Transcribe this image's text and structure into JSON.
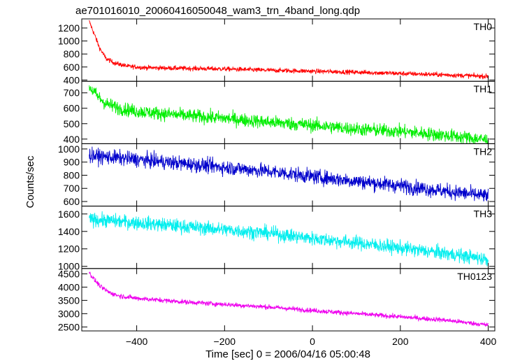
{
  "chart_data": {
    "type": "line",
    "title": "ae701016010_20060416050048_wam3_trn_4band_long.qdp",
    "xlabel": "Time [sec] 0 = 2006/04/16 05:00:48",
    "ylabel": "Counts/sec",
    "xlim": [
      -525,
      415
    ],
    "xticks": [
      -400,
      -200,
      0,
      200,
      400
    ],
    "grid": false,
    "panels": [
      {
        "name": "TH0",
        "color": "#ff0000",
        "ylim": [
          380,
          1340
        ],
        "yticks": [
          400,
          600,
          800,
          1000,
          1200
        ],
        "trend": [
          [
            -508,
            1300
          ],
          [
            -495,
            1080
          ],
          [
            -485,
            900
          ],
          [
            -470,
            730
          ],
          [
            -450,
            660
          ],
          [
            -420,
            610
          ],
          [
            -380,
            590
          ],
          [
            -300,
            580
          ],
          [
            -200,
            570
          ],
          [
            -100,
            550
          ],
          [
            0,
            535
          ],
          [
            100,
            520
          ],
          [
            200,
            500
          ],
          [
            300,
            480
          ],
          [
            400,
            455
          ]
        ],
        "noise": 18
      },
      {
        "name": "TH1",
        "color": "#00ee00",
        "ylim": [
          370,
          775
        ],
        "yticks": [
          400,
          500,
          600,
          700
        ],
        "trend": [
          [
            -508,
            740
          ],
          [
            -490,
            680
          ],
          [
            -470,
            630
          ],
          [
            -440,
            600
          ],
          [
            -400,
            580
          ],
          [
            -300,
            555
          ],
          [
            -200,
            535
          ],
          [
            -100,
            510
          ],
          [
            0,
            490
          ],
          [
            100,
            465
          ],
          [
            200,
            450
          ],
          [
            300,
            425
          ],
          [
            400,
            395
          ]
        ],
        "noise": 22
      },
      {
        "name": "TH2",
        "color": "#0000cc",
        "ylim": [
          565,
          1040
        ],
        "yticks": [
          600,
          700,
          800,
          900,
          1000
        ],
        "trend": [
          [
            -508,
            950
          ],
          [
            -400,
            920
          ],
          [
            -300,
            890
          ],
          [
            -200,
            860
          ],
          [
            -100,
            830
          ],
          [
            0,
            790
          ],
          [
            100,
            755
          ],
          [
            200,
            720
          ],
          [
            300,
            680
          ],
          [
            400,
            640
          ]
        ],
        "noise": 28
      },
      {
        "name": "TH3",
        "color": "#00eeee",
        "ylim": [
          975,
          1690
        ],
        "yticks": [
          1000,
          1200,
          1400,
          1600
        ],
        "trend": [
          [
            -508,
            1540
          ],
          [
            -400,
            1500
          ],
          [
            -300,
            1460
          ],
          [
            -200,
            1420
          ],
          [
            -100,
            1380
          ],
          [
            0,
            1320
          ],
          [
            100,
            1270
          ],
          [
            200,
            1210
          ],
          [
            300,
            1150
          ],
          [
            400,
            1080
          ]
        ],
        "noise": 40
      },
      {
        "name": "TH0123",
        "color": "#ee00ee",
        "ylim": [
          2350,
          4700
        ],
        "yticks": [
          2500,
          3000,
          3500,
          4000,
          4500
        ],
        "trend": [
          [
            -508,
            4550
          ],
          [
            -495,
            4250
          ],
          [
            -480,
            3980
          ],
          [
            -460,
            3780
          ],
          [
            -440,
            3670
          ],
          [
            -400,
            3580
          ],
          [
            -300,
            3450
          ],
          [
            -200,
            3350
          ],
          [
            -100,
            3250
          ],
          [
            0,
            3120
          ],
          [
            100,
            3000
          ],
          [
            200,
            2880
          ],
          [
            300,
            2760
          ],
          [
            400,
            2570
          ]
        ],
        "noise": 45
      }
    ]
  }
}
